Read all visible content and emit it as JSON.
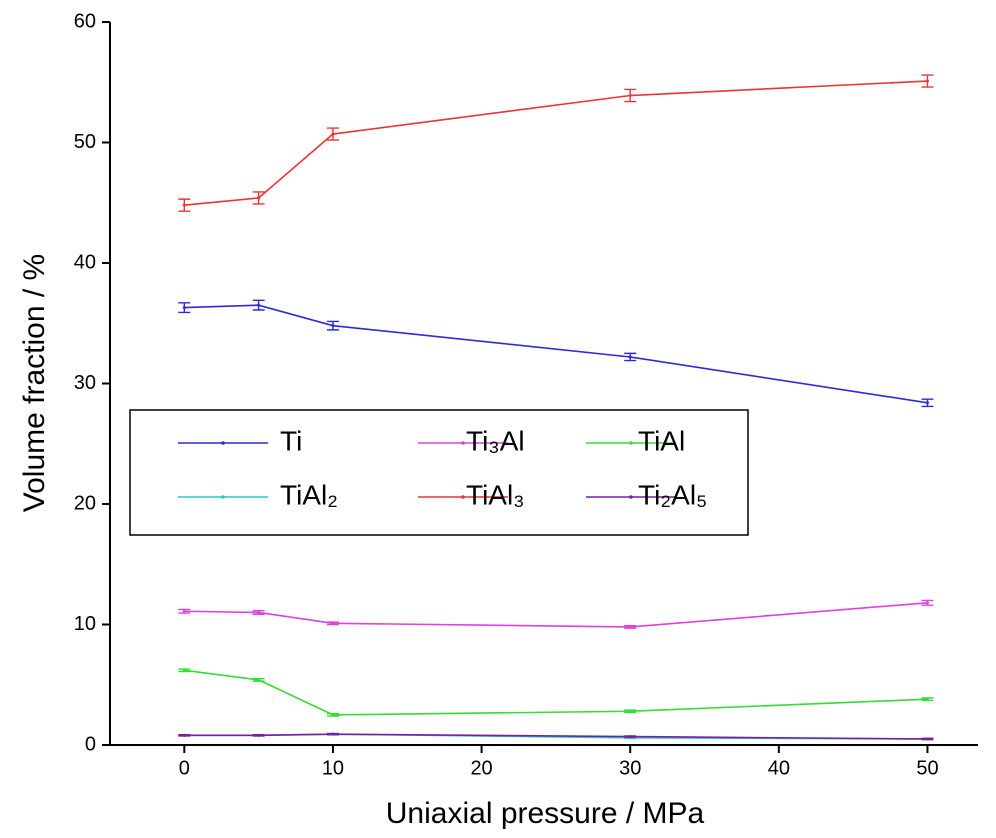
{
  "chart_data": {
    "type": "line",
    "x_label": "Uniaxial pressure / MPa",
    "y_label": "Volume fraction / %",
    "x": [
      0,
      5,
      10,
      30,
      50
    ],
    "xlim": [
      -5,
      53.4
    ],
    "xticks": [
      0,
      10,
      20,
      30,
      40,
      50
    ],
    "ylim": [
      0,
      60
    ],
    "yticks": [
      0,
      10,
      20,
      30,
      40,
      50,
      60
    ],
    "series": [
      {
        "name": "Ti",
        "color": "#2b2bd8",
        "values": [
          36.3,
          36.5,
          34.8,
          32.2,
          28.4
        ],
        "errors": [
          0.4,
          0.4,
          0.35,
          0.3,
          0.3
        ]
      },
      {
        "name": "Ti₃Al",
        "color": "#e040e0",
        "values": [
          11.1,
          11.0,
          10.1,
          9.8,
          11.8
        ],
        "errors": [
          0.15,
          0.15,
          0.1,
          0.1,
          0.2
        ]
      },
      {
        "name": "TiAl",
        "color": "#33dd33",
        "values": [
          6.2,
          5.4,
          2.5,
          2.8,
          3.8
        ],
        "errors": [
          0.1,
          0.1,
          0.1,
          0.1,
          0.1
        ]
      },
      {
        "name": "TiAl₂",
        "color": "#22cccc",
        "values": [
          0.8,
          0.8,
          0.9,
          0.6,
          0.5
        ],
        "errors": [
          0.05,
          0.05,
          0.05,
          0.05,
          0.05
        ]
      },
      {
        "name": "TiAl₃",
        "color": "#ee3333",
        "values": [
          44.8,
          45.4,
          50.7,
          53.9,
          55.1
        ],
        "errors": [
          0.5,
          0.5,
          0.5,
          0.5,
          0.5
        ]
      },
      {
        "name": "Ti₂Al₅",
        "color": "#7a1fa0",
        "values": [
          0.8,
          0.8,
          0.9,
          0.7,
          0.5
        ],
        "errors": [
          0.05,
          0.05,
          0.05,
          0.05,
          0.05
        ]
      }
    ]
  }
}
